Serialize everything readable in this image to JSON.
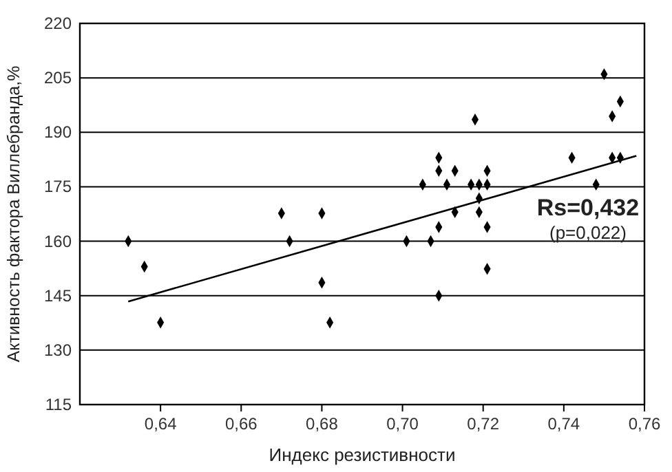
{
  "chart_data": {
    "type": "scatter",
    "xlabel": "Индекс резистивности",
    "ylabel": "Активность фактора Виллебранда,%",
    "xlim": [
      0.62,
      0.76
    ],
    "xticks": [
      {
        "value": 0.64,
        "label": "0,64"
      },
      {
        "value": 0.66,
        "label": "0,66"
      },
      {
        "value": 0.68,
        "label": "0,68"
      },
      {
        "value": 0.7,
        "label": "0,70"
      },
      {
        "value": 0.72,
        "label": "0,72"
      },
      {
        "value": 0.74,
        "label": "0,74"
      },
      {
        "value": 0.76,
        "label": "0,76"
      }
    ],
    "ylim": [
      115,
      220
    ],
    "yticks": [
      115,
      130,
      145,
      160,
      175,
      190,
      205,
      220
    ],
    "grid": "y",
    "marker": "diamond",
    "annotations": [
      "Rs=0,432",
      "(p=0,022)"
    ],
    "series": [
      {
        "color": "#000000",
        "x": [
          0.632,
          0.636,
          0.64,
          0.67,
          0.672,
          0.68,
          0.68,
          0.682,
          0.709,
          0.709,
          0.713,
          0.721,
          0.705,
          0.711,
          0.717,
          0.719,
          0.721,
          0.719,
          0.713,
          0.719,
          0.709,
          0.721,
          0.701,
          0.707,
          0.721,
          0.709,
          0.742,
          0.748,
          0.752,
          0.754,
          0.75,
          0.754,
          0.752,
          0.718
        ],
        "values": [
          160,
          153,
          137.6,
          167.7,
          160,
          167.7,
          148.6,
          137.6,
          183,
          179.4,
          179.4,
          179.4,
          175.6,
          175.6,
          175.6,
          175.6,
          175.6,
          171.8,
          168,
          168,
          163.9,
          163.9,
          160,
          160,
          152.4,
          145,
          183,
          175.6,
          183,
          183,
          206,
          198.5,
          194.4,
          193.5
        ]
      },
      {
        "type": "line",
        "color": "#000000",
        "x": [
          0.632,
          0.758
        ],
        "values": [
          143.4,
          183.5
        ],
        "marker": "none"
      }
    ]
  }
}
